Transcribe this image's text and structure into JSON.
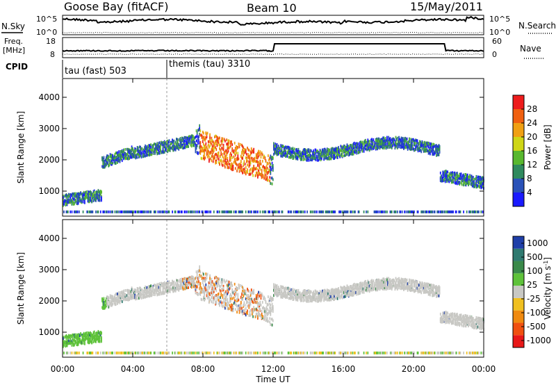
{
  "header": {
    "station": "Goose Bay (fitACF)",
    "beam": "Beam 10",
    "date": "15/May/2011"
  },
  "sky_panel": {
    "left_label": "N.Sky",
    "right_label": "N.Search",
    "left_ticks": [
      "10^5",
      "10^0"
    ],
    "right_ticks": [
      "10^5",
      "10^0"
    ]
  },
  "freq_panel": {
    "left_label_1": "Freq.",
    "left_label_2": "[MHz]",
    "right_label": "Nave",
    "left_ticks": [
      "18",
      "8"
    ],
    "right_ticks": [
      "60",
      "0"
    ]
  },
  "cpid": {
    "label": "CPID",
    "segments": [
      {
        "label": "tau (fast) 503",
        "start_hour": 0
      },
      {
        "label": "themis (tau) 3310",
        "start_hour": 6
      }
    ]
  },
  "chart_data": [
    {
      "type": "heatmap",
      "panel": "power",
      "ylabel": "Slant Range [km]",
      "yticks": [
        1000,
        2000,
        3000,
        4000
      ],
      "ylim": [
        200,
        4600
      ],
      "xlim": [
        0,
        24
      ],
      "colorbar_label": "Power [dB]",
      "colorbar_ticks": [
        4,
        8,
        12,
        16,
        20,
        24,
        28
      ],
      "colorbar_colors": [
        "#1a1aff",
        "#2a52b8",
        "#2f8a5e",
        "#58b82e",
        "#cfd616",
        "#f0a013",
        "#f06010",
        "#ee1c1c"
      ]
    },
    {
      "type": "heatmap",
      "panel": "velocity",
      "ylabel": "Slant Range [km]",
      "yticks": [
        1000,
        2000,
        3000,
        4000
      ],
      "ylim": [
        200,
        4600
      ],
      "xlim": [
        0,
        24
      ],
      "xlabel": "Time UT",
      "xticks": [
        "00:00",
        "04:00",
        "08:00",
        "12:00",
        "16:00",
        "20:00",
        "00:00"
      ],
      "colorbar_label": "Velocity [m s^-1]",
      "colorbar_ticks": [
        "1000",
        "500",
        "100",
        "25",
        "-25",
        "-100",
        "-500",
        "-1000"
      ],
      "colorbar_colors": [
        "#1f3fa8",
        "#2f7a70",
        "#3a8a4a",
        "#5ec23a",
        "#c8c8c4",
        "#f0c020",
        "#f08a10",
        "#f05010",
        "#e81818"
      ]
    }
  ]
}
